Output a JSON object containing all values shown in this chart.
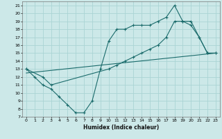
{
  "title": "",
  "xlabel": "Humidex (Indice chaleur)",
  "background_color": "#cce8e8",
  "grid_color": "#aad4d4",
  "line_color": "#1a6b6b",
  "xlim": [
    -0.5,
    23.5
  ],
  "ylim": [
    7,
    21.5
  ],
  "xticks": [
    0,
    1,
    2,
    3,
    4,
    5,
    6,
    7,
    8,
    9,
    10,
    11,
    12,
    13,
    14,
    15,
    16,
    17,
    18,
    19,
    20,
    21,
    22,
    23
  ],
  "yticks": [
    7,
    8,
    9,
    10,
    11,
    12,
    13,
    14,
    15,
    16,
    17,
    18,
    19,
    20,
    21
  ],
  "line1_x": [
    0,
    1,
    2,
    3,
    4,
    5,
    6,
    7,
    8,
    9,
    10,
    11,
    12,
    13,
    14,
    15,
    16,
    17,
    18,
    19,
    20,
    21,
    22,
    23
  ],
  "line1_y": [
    13,
    12,
    11,
    10.5,
    9.5,
    8.5,
    7.5,
    7.5,
    9.0,
    13,
    16.5,
    18,
    18,
    18.5,
    18.5,
    18.5,
    19,
    19.5,
    21,
    19,
    18.5,
    17,
    15,
    15
  ],
  "line2_x": [
    0,
    2,
    3,
    10,
    11,
    12,
    13,
    14,
    15,
    16,
    17,
    18,
    19,
    20,
    21,
    22,
    23
  ],
  "line2_y": [
    13,
    12,
    11,
    13,
    13.5,
    14,
    14.5,
    15,
    15.5,
    16,
    17,
    19,
    19,
    19,
    17,
    15,
    15
  ],
  "line3_x": [
    0,
    23
  ],
  "line3_y": [
    12.5,
    15
  ]
}
